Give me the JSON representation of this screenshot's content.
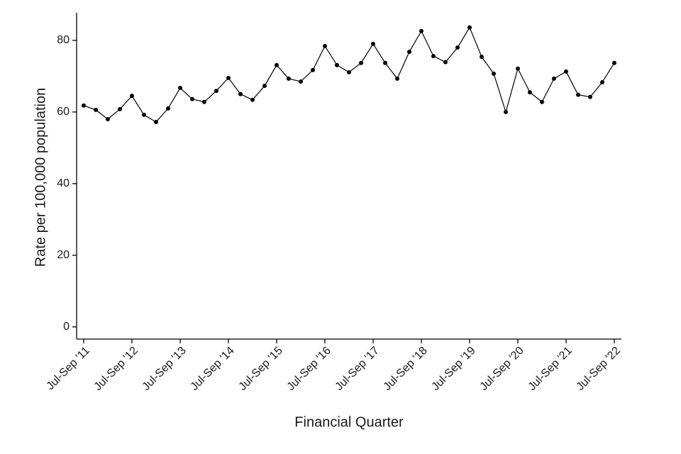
{
  "chart_data": {
    "type": "line",
    "x_label": "Financial Quarter",
    "y_label": "Rate per 100,000 population",
    "categories": [
      "Jul-Sep '11",
      null,
      null,
      null,
      "Jul-Sep '12",
      null,
      null,
      null,
      "Jul-Sep '13",
      null,
      null,
      null,
      "Jul-Sep '14",
      null,
      null,
      null,
      "Jul-Sep '15",
      null,
      null,
      null,
      "Jul-Sep '16",
      null,
      null,
      null,
      "Jul-Sep '17",
      null,
      null,
      null,
      "Jul-Sep '18",
      null,
      null,
      null,
      "Jul-Sep '19",
      null,
      null,
      null,
      "Jul-Sep '20",
      null,
      null,
      null,
      "Jul-Sep '21",
      null,
      null,
      null,
      "Jul-Sep '22"
    ],
    "values": [
      61.8,
      60.6,
      58.0,
      60.8,
      64.5,
      59.2,
      57.2,
      61.0,
      66.7,
      63.6,
      62.8,
      65.9,
      69.5,
      65.0,
      63.4,
      67.3,
      73.1,
      69.3,
      68.5,
      71.7,
      78.4,
      73.1,
      71.1,
      73.7,
      79.0,
      73.7,
      69.3,
      76.8,
      82.6,
      75.6,
      73.9,
      78.0,
      83.6,
      75.4,
      70.7,
      60.0,
      72.1,
      65.5,
      62.8,
      69.3,
      71.3,
      64.8,
      64.2,
      68.3,
      73.7
    ],
    "color": "#000000",
    "ylim": [
      -3.4,
      87.7
    ],
    "yticks": [
      0,
      20,
      40,
      60,
      80
    ],
    "grid": false
  }
}
